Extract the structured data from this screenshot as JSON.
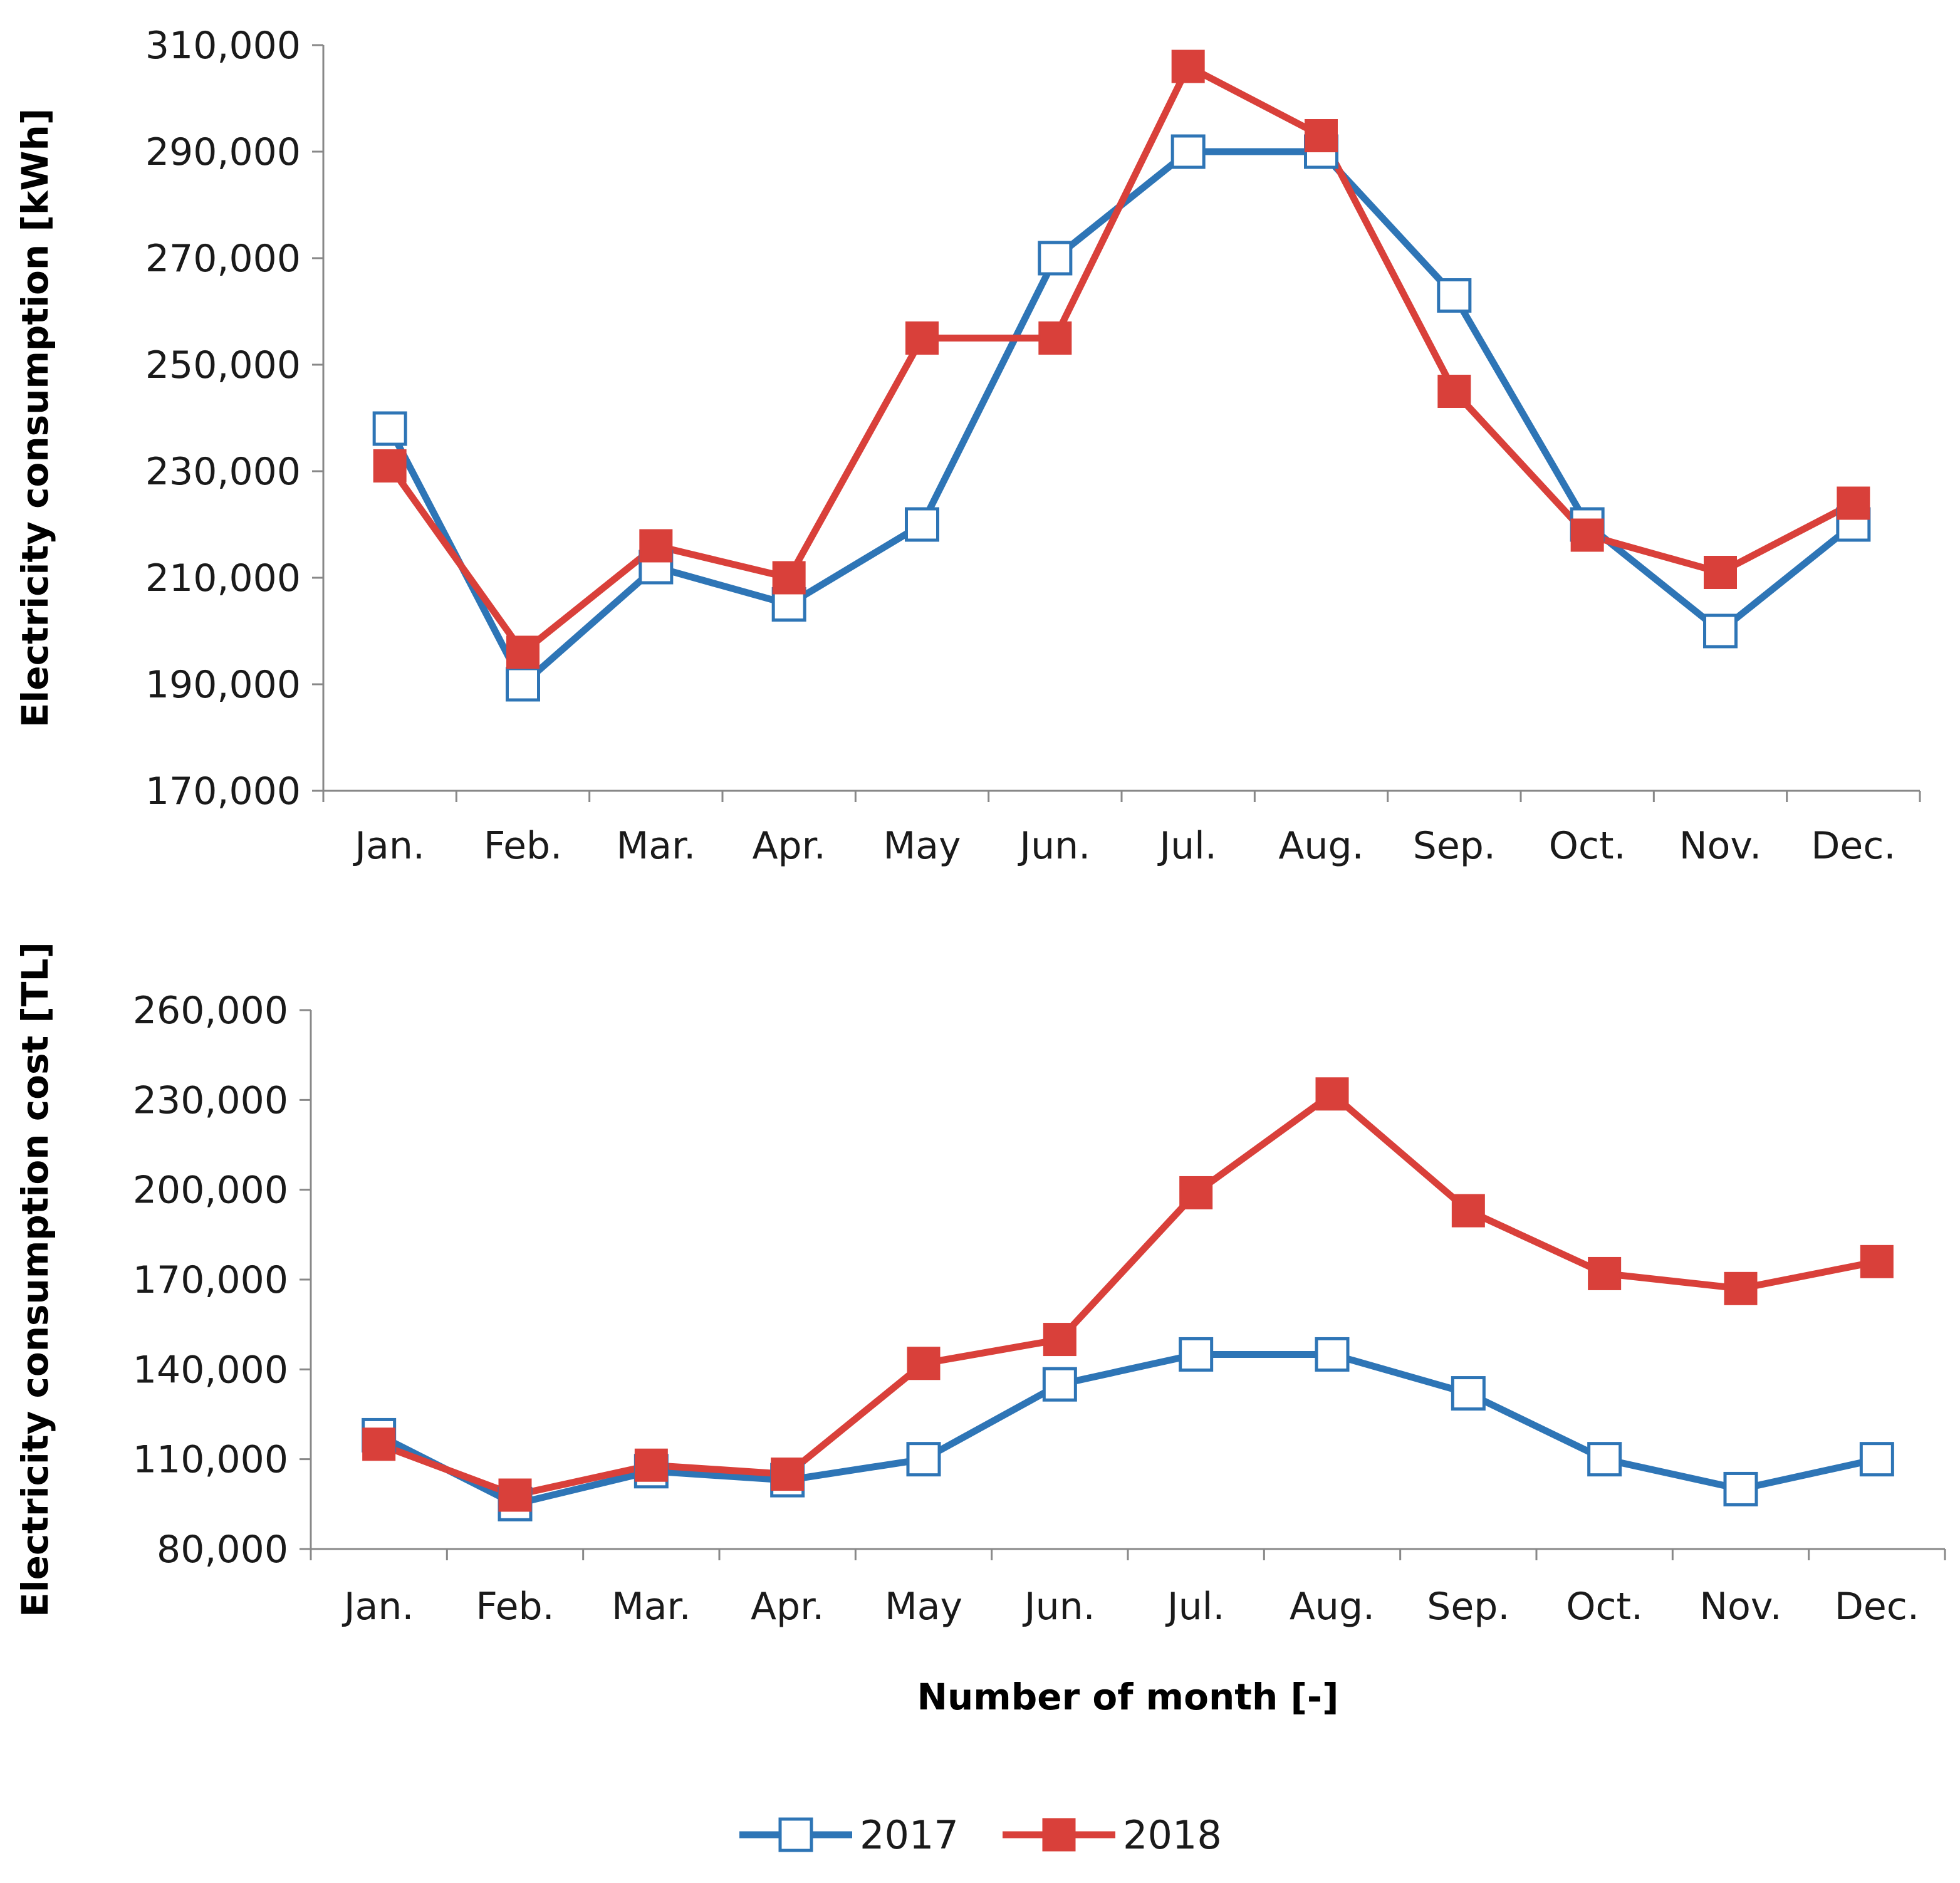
{
  "chart_data": [
    {
      "type": "line",
      "title": "",
      "xlabel": "",
      "ylabel": "Electricity consumption [kWh]",
      "categories": [
        "Jan.",
        "Feb.",
        "Mar.",
        "Apr.",
        "May",
        "Jun.",
        "Jul.",
        "Aug.",
        "Sep.",
        "Oct.",
        "Nov.",
        "Dec."
      ],
      "ylim": [
        170000,
        310000
      ],
      "yticks": [
        170000,
        190000,
        210000,
        230000,
        250000,
        270000,
        290000,
        310000
      ],
      "ytick_labels": [
        "170,000",
        "190,000",
        "210,000",
        "230,000",
        "250,000",
        "270,000",
        "290,000",
        "310,000"
      ],
      "series": [
        {
          "name": "2017",
          "color": "#2e75b6",
          "marker": "hollow-square",
          "values": [
            238000,
            190000,
            212000,
            205000,
            220000,
            270000,
            290000,
            290000,
            263000,
            220000,
            200000,
            220000
          ]
        },
        {
          "name": "2018",
          "color": "#d9403a",
          "marker": "filled-square",
          "values": [
            231000,
            196000,
            216000,
            210000,
            255000,
            255000,
            306000,
            293000,
            245000,
            218000,
            211000,
            224000
          ]
        }
      ]
    },
    {
      "type": "line",
      "title": "",
      "xlabel": "Number of month  [-]",
      "ylabel": "Electricity consumption cost [TL]",
      "categories": [
        "Jan.",
        "Feb.",
        "Mar.",
        "Apr.",
        "May",
        "Jun.",
        "Jul.",
        "Aug.",
        "Sep.",
        "Oct.",
        "Nov.",
        "Dec."
      ],
      "ylim": [
        80000,
        260000
      ],
      "yticks": [
        80000,
        110000,
        140000,
        170000,
        200000,
        230000,
        260000
      ],
      "ytick_labels": [
        "80,000",
        "110,000",
        "140,000",
        "170,000",
        "200,000",
        "230,000",
        "260,000"
      ],
      "series": [
        {
          "name": "2017",
          "color": "#2e75b6",
          "marker": "hollow-square",
          "values": [
            118000,
            95000,
            106000,
            103000,
            110000,
            135000,
            145000,
            145000,
            132000,
            110000,
            100000,
            110000
          ]
        },
        {
          "name": "2018",
          "color": "#d9403a",
          "marker": "filled-square",
          "values": [
            115000,
            98000,
            108000,
            105000,
            142000,
            150000,
            199000,
            232000,
            193000,
            172000,
            167000,
            176000
          ]
        }
      ]
    }
  ],
  "legend": {
    "position": "bottom-center",
    "entries": [
      {
        "label": "2017",
        "color": "#2e75b6",
        "marker": "hollow-square"
      },
      {
        "label": "2018",
        "color": "#d9403a",
        "marker": "filled-square"
      }
    ]
  }
}
